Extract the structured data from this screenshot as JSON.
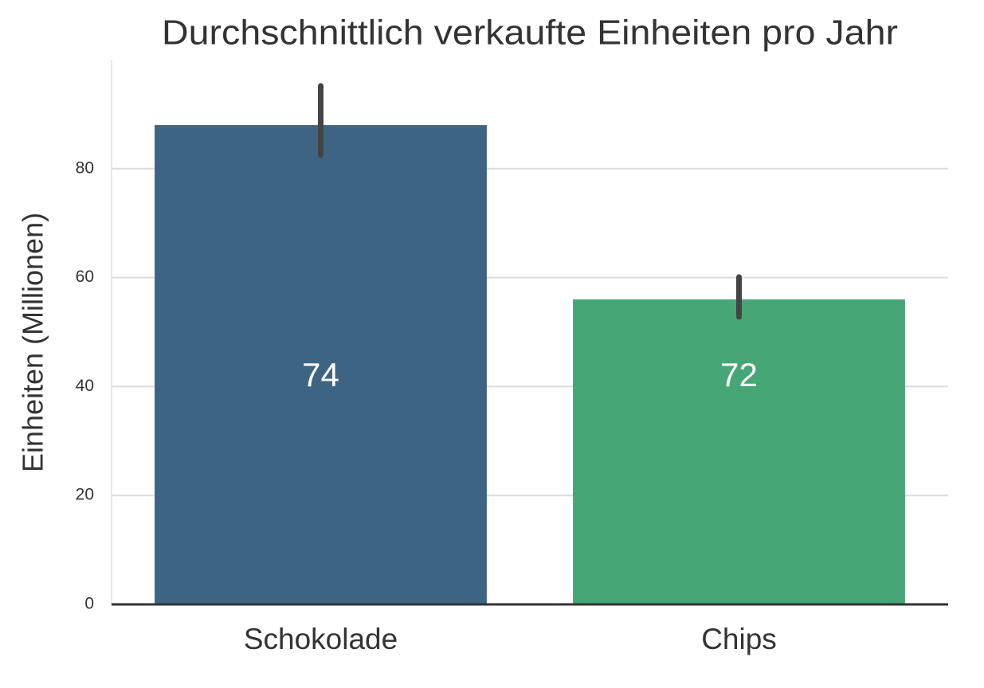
{
  "chart_data": {
    "type": "bar",
    "title": "Durchschnittlich verkaufte Einheiten pro Jahr",
    "y_label": "Einheiten (Millionen)",
    "categories": [
      "Schokolade",
      "Chips"
    ],
    "values": [
      88,
      56
    ],
    "error_low": [
      82.5,
      52.8
    ],
    "error_high": [
      95.2,
      60.1
    ],
    "annotations": [
      "74",
      "72"
    ],
    "colors": [
      "#3d6583",
      "#46a676"
    ],
    "ylim": [
      0,
      100
    ],
    "yticks": [
      0,
      20,
      40,
      60,
      80
    ],
    "grid": true
  }
}
